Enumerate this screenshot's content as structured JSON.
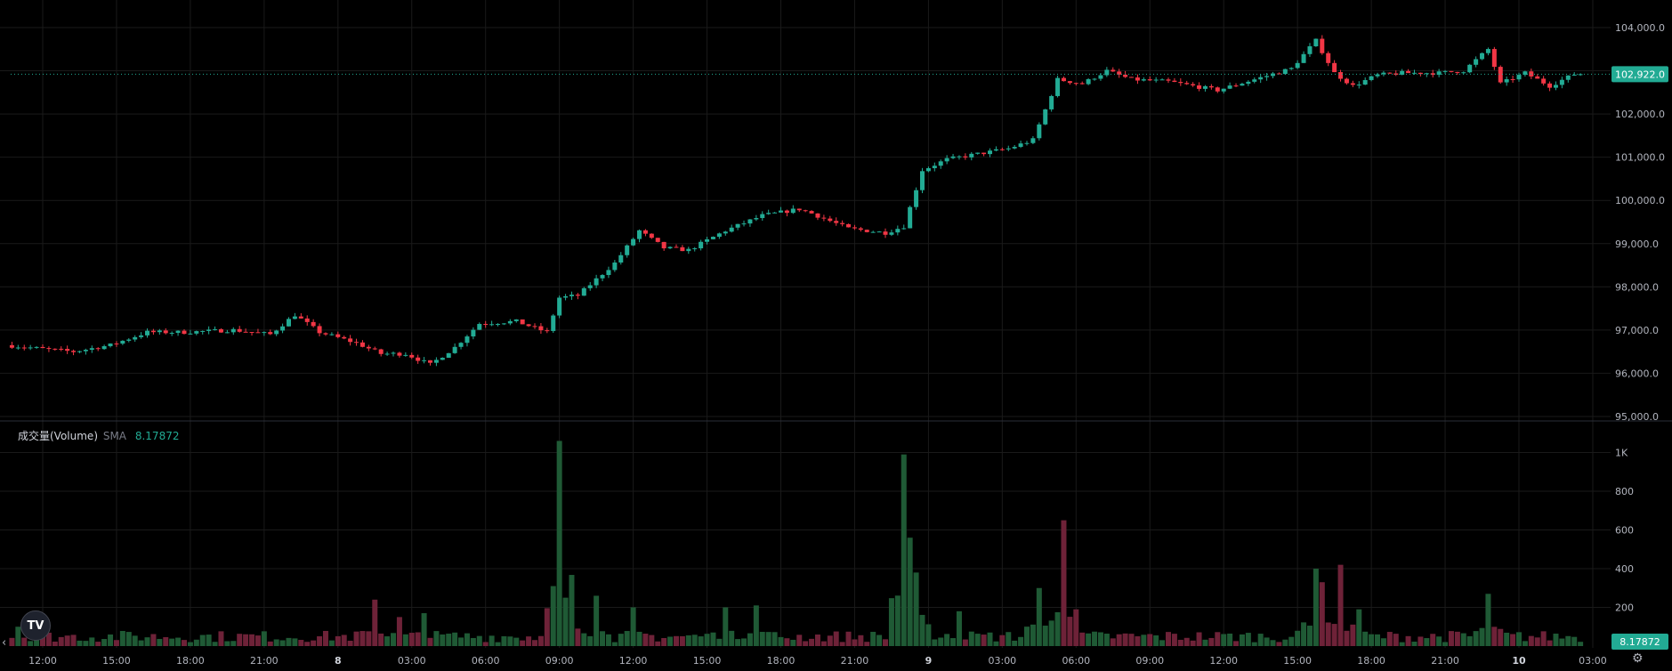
{
  "chart_data": [
    {
      "type": "candlestick",
      "title": "",
      "ylim": [
        95000,
        104200
      ],
      "y_ticks": [
        "104,000.0",
        "103,000.0",
        "102,000.0",
        "101,000.0",
        "100,000.0",
        "99,000.0",
        "98,000.0",
        "97,000.0",
        "96,000.0",
        "95,000.0"
      ],
      "y_tick_values": [
        104000,
        103000,
        102000,
        101000,
        100000,
        99000,
        98000,
        97000,
        96000,
        95000
      ],
      "x_ticks": [
        "12:00",
        "15:00",
        "18:00",
        "21:00",
        "8",
        "03:00",
        "06:00",
        "09:00",
        "12:00",
        "15:00",
        "18:00",
        "21:00",
        "9",
        "03:00",
        "06:00",
        "09:00",
        "12:00",
        "15:00",
        "18:00",
        "21:00",
        "10",
        "03:00"
      ],
      "x_tick_hours": [
        12,
        15,
        18,
        21,
        24,
        27,
        30,
        33,
        36,
        39,
        42,
        45,
        48,
        51,
        54,
        57,
        60,
        63,
        66,
        69,
        72,
        75
      ],
      "x_unit": "hours since 00:00 of day 7",
      "start_hour": 10.75,
      "bar_interval_hours": 0.25,
      "anchors_hour_price": [
        [
          10.75,
          96650
        ],
        [
          12.5,
          96550
        ],
        [
          13.5,
          96500
        ],
        [
          15,
          96650
        ],
        [
          16.5,
          96950
        ],
        [
          18,
          96950
        ],
        [
          20,
          97000
        ],
        [
          21.5,
          96900
        ],
        [
          22.5,
          97350
        ],
        [
          23.5,
          96950
        ],
        [
          25,
          96700
        ],
        [
          26,
          96450
        ],
        [
          27,
          96450
        ],
        [
          28,
          96200
        ],
        [
          29,
          96600
        ],
        [
          30,
          97150
        ],
        [
          31.5,
          97200
        ],
        [
          32.75,
          96950
        ],
        [
          33.25,
          97750
        ],
        [
          34,
          97800
        ],
        [
          35.5,
          98550
        ],
        [
          36.5,
          99300
        ],
        [
          37.5,
          98900
        ],
        [
          38.5,
          98850
        ],
        [
          40,
          99300
        ],
        [
          41.5,
          99650
        ],
        [
          43,
          99800
        ],
        [
          43.5,
          99700
        ],
        [
          45,
          99350
        ],
        [
          46.5,
          99250
        ],
        [
          47.25,
          99400
        ],
        [
          48,
          100700
        ],
        [
          49,
          100950
        ],
        [
          50,
          101050
        ],
        [
          51.5,
          101200
        ],
        [
          52.5,
          101400
        ],
        [
          53.5,
          102800
        ],
        [
          54.5,
          102700
        ],
        [
          55.5,
          103000
        ],
        [
          56.5,
          102800
        ],
        [
          58,
          102750
        ],
        [
          60,
          102550
        ],
        [
          61.5,
          102800
        ],
        [
          63,
          103050
        ],
        [
          64,
          103700
        ],
        [
          64.75,
          102950
        ],
        [
          65.5,
          102650
        ],
        [
          66.5,
          102900
        ],
        [
          67.5,
          102950
        ],
        [
          69,
          102950
        ],
        [
          70,
          103000
        ],
        [
          71,
          103500
        ],
        [
          71.5,
          102700
        ],
        [
          72.5,
          102950
        ],
        [
          73.5,
          102650
        ],
        [
          74.5,
          102922
        ]
      ],
      "volatility": 65,
      "seed": 7,
      "last_price": "102,922.0",
      "last_price_value": 102922,
      "colors": {
        "up": "#22ab94",
        "down": "#f23645",
        "up_vol": "#1f5a35",
        "down_vol": "#6e2238",
        "grid": "#1a1a1a",
        "tick_text": "#b2b5be",
        "price_line": "#22ab94"
      }
    },
    {
      "type": "bar",
      "title": "成交量(Volume)",
      "indicator": "SMA",
      "indicator_value": "8.17872",
      "last_value_badge": "8.17872",
      "ylim": [
        0,
        1050
      ],
      "y_ticks": [
        "1K",
        "800",
        "600",
        "400",
        "200"
      ],
      "y_tick_values": [
        1000,
        800,
        600,
        400,
        200
      ],
      "base_volume": 50,
      "spikes_hour_volume": [
        [
          11,
          100
        ],
        [
          25.5,
          240
        ],
        [
          26.5,
          150
        ],
        [
          27.5,
          170
        ],
        [
          33,
          1060
        ],
        [
          33.25,
          250
        ],
        [
          34.5,
          260
        ],
        [
          36,
          200
        ],
        [
          39.75,
          200
        ],
        [
          41,
          210
        ],
        [
          47,
          990
        ],
        [
          47.25,
          560
        ],
        [
          47.5,
          380
        ],
        [
          49.25,
          180
        ],
        [
          52.5,
          300
        ],
        [
          53.5,
          650
        ],
        [
          54,
          190
        ],
        [
          63.75,
          400
        ],
        [
          64,
          330
        ],
        [
          64.75,
          420
        ],
        [
          65.5,
          190
        ],
        [
          70.75,
          270
        ]
      ]
    }
  ],
  "volume_legend": {
    "name": "成交量(Volume)",
    "indicator": "SMA",
    "value": "8.17872"
  },
  "logo": {
    "text": "TV",
    "icon": "tradingview-logo-icon"
  },
  "controls": {
    "scroll_left": "‹",
    "settings": "⚙"
  }
}
